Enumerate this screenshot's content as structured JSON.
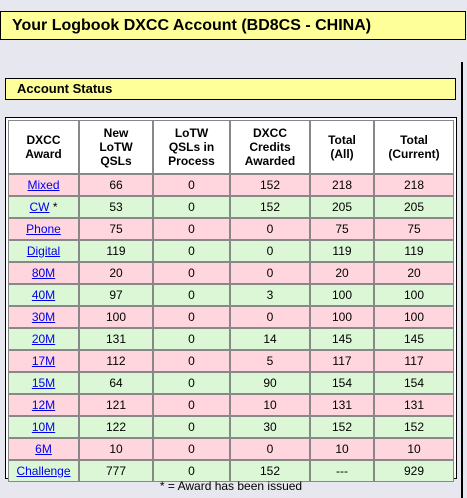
{
  "page": {
    "title": "Your Logbook DXCC Account (BD8CS - CHINA)",
    "section_title": "Account Status",
    "footnote": "* = Award has been issued"
  },
  "colors": {
    "header_bg": "#ffff99",
    "row_pink": "#ffd6dd",
    "row_green": "#dcf7d6",
    "link": "#0000ee"
  },
  "table": {
    "headers": [
      "DXCC\nAward",
      "New\nLoTW\nQSLs",
      "LoTW\nQSLs in\nProcess",
      "DXCC\nCredits\nAwarded",
      "Total\n(All)",
      "Total\n(Current)"
    ],
    "rows": [
      {
        "award": "Mixed",
        "mark": "",
        "new": "66",
        "process": "0",
        "credits": "152",
        "all": "218",
        "current": "218",
        "tone": "pink"
      },
      {
        "award": "CW",
        "mark": " *",
        "new": "53",
        "process": "0",
        "credits": "152",
        "all": "205",
        "current": "205",
        "tone": "green"
      },
      {
        "award": "Phone",
        "mark": "",
        "new": "75",
        "process": "0",
        "credits": "0",
        "all": "75",
        "current": "75",
        "tone": "pink"
      },
      {
        "award": "Digital",
        "mark": "",
        "new": "119",
        "process": "0",
        "credits": "0",
        "all": "119",
        "current": "119",
        "tone": "green"
      },
      {
        "award": "80M",
        "mark": "",
        "new": "20",
        "process": "0",
        "credits": "0",
        "all": "20",
        "current": "20",
        "tone": "pink"
      },
      {
        "award": "40M",
        "mark": "",
        "new": "97",
        "process": "0",
        "credits": "3",
        "all": "100",
        "current": "100",
        "tone": "green"
      },
      {
        "award": "30M",
        "mark": "",
        "new": "100",
        "process": "0",
        "credits": "0",
        "all": "100",
        "current": "100",
        "tone": "pink"
      },
      {
        "award": "20M",
        "mark": "",
        "new": "131",
        "process": "0",
        "credits": "14",
        "all": "145",
        "current": "145",
        "tone": "green"
      },
      {
        "award": "17M",
        "mark": "",
        "new": "112",
        "process": "0",
        "credits": "5",
        "all": "117",
        "current": "117",
        "tone": "pink"
      },
      {
        "award": "15M",
        "mark": "",
        "new": "64",
        "process": "0",
        "credits": "90",
        "all": "154",
        "current": "154",
        "tone": "green"
      },
      {
        "award": "12M",
        "mark": "",
        "new": "121",
        "process": "0",
        "credits": "10",
        "all": "131",
        "current": "131",
        "tone": "pink"
      },
      {
        "award": "10M",
        "mark": "",
        "new": "122",
        "process": "0",
        "credits": "30",
        "all": "152",
        "current": "152",
        "tone": "green"
      },
      {
        "award": "6M",
        "mark": "",
        "new": "10",
        "process": "0",
        "credits": "0",
        "all": "10",
        "current": "10",
        "tone": "pink"
      },
      {
        "award": "Challenge",
        "mark": "",
        "new": "777",
        "process": "0",
        "credits": "152",
        "all": "---",
        "current": "929",
        "tone": "green"
      }
    ]
  }
}
